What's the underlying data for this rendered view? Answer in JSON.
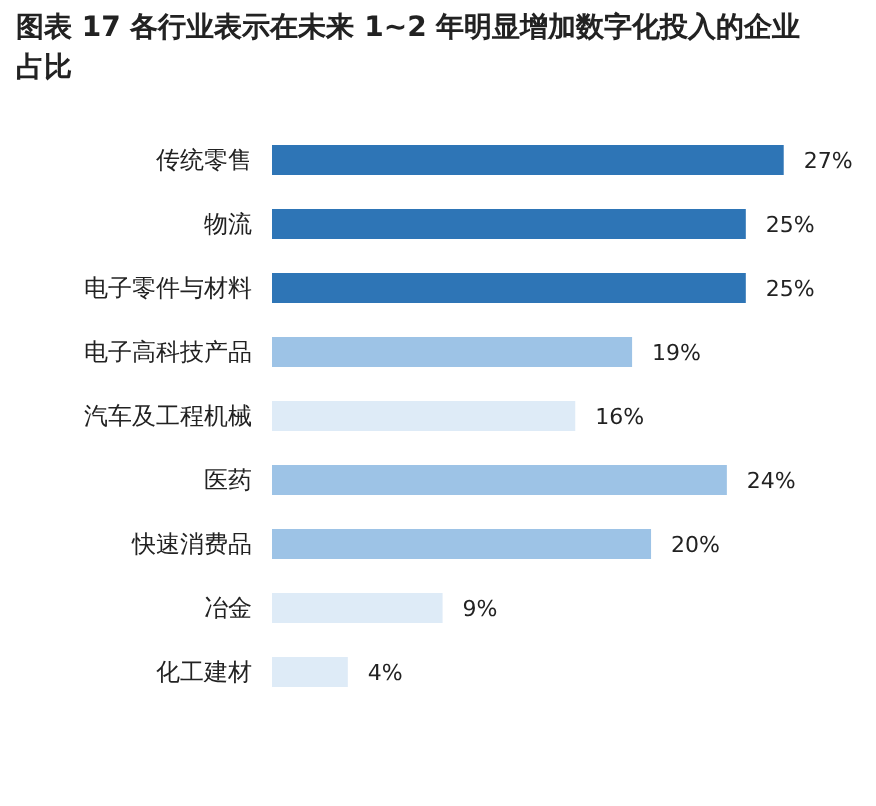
{
  "chart_data": {
    "type": "bar",
    "orientation": "horizontal",
    "title": "图表 17 各行业表示在未来 1~2 年明显增加数字化投入的企业占比",
    "categories": [
      "传统零售",
      "物流",
      "电子零件与材料",
      "电子高科技产品",
      "汽车及工程机械",
      "医药",
      "快速消费品",
      "冶金",
      "化工建材"
    ],
    "values": [
      27,
      25,
      25,
      19,
      16,
      24,
      20,
      9,
      4
    ],
    "colors": [
      "#2e75b6",
      "#2e75b6",
      "#2e75b6",
      "#9dc3e6",
      "#deebf7",
      "#9dc3e6",
      "#9dc3e6",
      "#deebf7",
      "#deebf7"
    ],
    "value_labels": [
      "27%",
      "25%",
      "25%",
      "19%",
      "16%",
      "24%",
      "20%",
      "9%",
      "4%"
    ]
  }
}
